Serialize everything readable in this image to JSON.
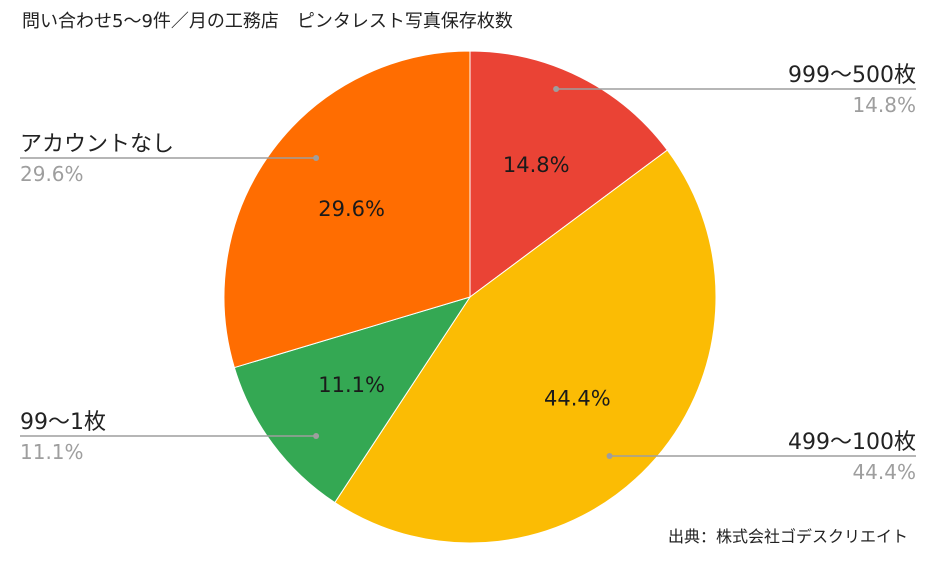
{
  "chart_data": {
    "type": "pie",
    "title": "問い合わせ5〜9件／月の工務店　ピンタレスト写真保存枚数",
    "start_angle_deg": 0,
    "direction": "clockwise",
    "slices": [
      {
        "name": "999〜500枚",
        "value": 14.8,
        "label": "14.8%",
        "color": "#EA4335"
      },
      {
        "name": "499〜100枚",
        "value": 44.4,
        "label": "44.4%",
        "color": "#FBBC04"
      },
      {
        "name": "99〜1枚",
        "value": 11.1,
        "label": "11.1%",
        "color": "#34A853"
      },
      {
        "name": "アカウントなし",
        "value": 29.6,
        "label": "29.6%",
        "color": "#FF6D01"
      }
    ],
    "legend_placement": "outside-labels",
    "source": "出典：株式会社ゴデスクリエイト"
  }
}
